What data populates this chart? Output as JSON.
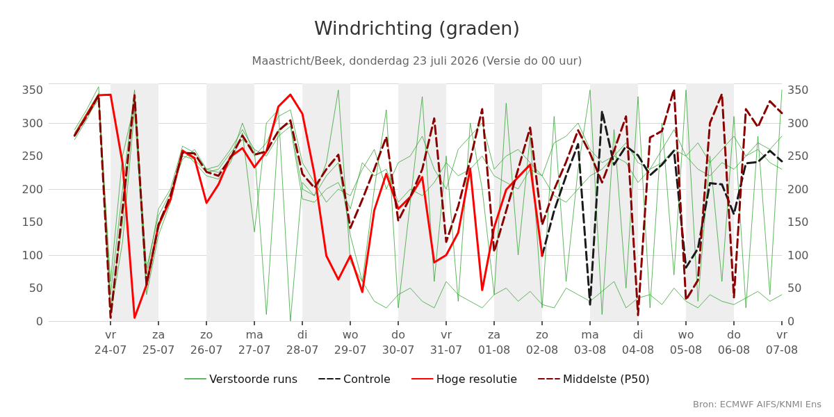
{
  "chart_data": {
    "type": "line",
    "title": "Windrichting (graden)",
    "subtitle": "Maastricht/Beek, donderdag 23 juli 2026 (Versie do 00 uur)",
    "x": [
      "2026-07-23T06:00",
      "2026-07-23T12:00",
      "2026-07-23T18:00",
      "2026-07-24T00:00",
      "2026-07-24T06:00",
      "2026-07-24T12:00",
      "2026-07-24T18:00",
      "2026-07-25T00:00",
      "2026-07-25T06:00",
      "2026-07-25T12:00",
      "2026-07-25T18:00",
      "2026-07-26T00:00",
      "2026-07-26T06:00",
      "2026-07-26T12:00",
      "2026-07-26T18:00",
      "2026-07-27T00:00",
      "2026-07-27T06:00",
      "2026-07-27T12:00",
      "2026-07-27T18:00",
      "2026-07-28T00:00",
      "2026-07-28T06:00",
      "2026-07-28T12:00",
      "2026-07-28T18:00",
      "2026-07-29T00:00",
      "2026-07-29T06:00",
      "2026-07-29T12:00",
      "2026-07-29T18:00",
      "2026-07-30T00:00",
      "2026-07-30T06:00",
      "2026-07-30T12:00",
      "2026-07-30T18:00",
      "2026-07-31T00:00",
      "2026-07-31T06:00",
      "2026-07-31T12:00",
      "2026-07-31T18:00",
      "2026-08-01T00:00",
      "2026-08-01T06:00",
      "2026-08-01T12:00",
      "2026-08-01T18:00",
      "2026-08-02T00:00",
      "2026-08-02T06:00",
      "2026-08-02T12:00",
      "2026-08-02T18:00",
      "2026-08-03T00:00",
      "2026-08-03T06:00",
      "2026-08-03T12:00",
      "2026-08-03T18:00",
      "2026-08-04T00:00",
      "2026-08-04T06:00",
      "2026-08-04T12:00",
      "2026-08-04T18:00",
      "2026-08-05T00:00",
      "2026-08-05T06:00",
      "2026-08-05T12:00",
      "2026-08-05T18:00",
      "2026-08-06T00:00",
      "2026-08-06T06:00",
      "2026-08-06T12:00",
      "2026-08-06T18:00",
      "2026-08-07T00:00"
    ],
    "series": [
      {
        "name": "Verstoorde runs",
        "color": "#2ca02c",
        "line_style": "solid",
        "values": [
          285,
          315,
          345,
          20,
          150,
          340,
          50,
          140,
          185,
          250,
          245,
          225,
          230,
          255,
          275,
          260,
          10,
          290,
          300,
          200,
          190,
          220,
          240,
          130,
          60,
          30,
          20,
          40,
          50,
          30,
          20,
          60,
          40,
          30,
          20,
          40,
          50,
          30,
          45,
          25,
          20,
          50,
          40,
          30,
          45,
          60,
          20,
          35,
          40,
          25,
          50,
          30,
          20,
          40,
          30,
          25,
          35,
          45,
          30,
          40
        ]
      },
      {
        "color": "#2ca02c",
        "line_style": "solid",
        "values": [
          275,
          305,
          340,
          60,
          250,
          330,
          80,
          160,
          195,
          245,
          260,
          230,
          225,
          245,
          300,
          250,
          270,
          310,
          320,
          240,
          210,
          180,
          200,
          190,
          230,
          260,
          200,
          240,
          250,
          280,
          230,
          200,
          260,
          280,
          300,
          230,
          250,
          260,
          240,
          220,
          270,
          280,
          300,
          260,
          240,
          250,
          270,
          240,
          230,
          260,
          290,
          250,
          270,
          240,
          260,
          280,
          250,
          270,
          260,
          280
        ]
      },
      {
        "color": "#2ca02c",
        "line_style": "solid",
        "values": [
          280,
          310,
          335,
          10,
          120,
          320,
          40,
          130,
          180,
          260,
          240,
          220,
          215,
          240,
          285,
          135,
          300,
          320,
          0,
          210,
          190,
          240,
          350,
          90,
          60,
          200,
          320,
          20,
          180,
          340,
          60,
          250,
          30,
          300,
          200,
          40,
          330,
          100,
          280,
          20,
          310,
          60,
          230,
          350,
          10,
          290,
          50,
          340,
          20,
          300,
          70,
          350,
          30,
          250,
          60,
          310,
          20,
          280,
          40,
          350
        ]
      },
      {
        "color": "#2ca02c",
        "line_style": "solid",
        "values": [
          290,
          320,
          355,
          40,
          200,
          350,
          70,
          170,
          200,
          265,
          255,
          230,
          235,
          260,
          290,
          260,
          250,
          280,
          295,
          185,
          180,
          200,
          210,
          170,
          240,
          220,
          230,
          180,
          200,
          190,
          210,
          240,
          220,
          230,
          250,
          220,
          210,
          200,
          230,
          220,
          190,
          180,
          200,
          220,
          230,
          250,
          240,
          210,
          230,
          240,
          260,
          250,
          230,
          220,
          240,
          230,
          250,
          260,
          240,
          230
        ]
      },
      {
        "name": "Controle",
        "color": "#1a1a1a",
        "line_style": "dashed",
        "values": [
          null,
          null,
          null,
          null,
          null,
          null,
          null,
          null,
          null,
          null,
          null,
          null,
          null,
          null,
          null,
          null,
          null,
          null,
          null,
          null,
          null,
          null,
          null,
          null,
          null,
          null,
          null,
          null,
          null,
          null,
          null,
          null,
          null,
          null,
          null,
          null,
          null,
          null,
          null,
          99,
          167,
          220,
          268,
          25,
          318,
          237,
          265,
          251,
          221,
          237,
          258,
          81,
          110,
          209,
          207,
          162,
          239,
          241,
          258,
          242
        ]
      },
      {
        "name": "Hoge resolutie",
        "color": "#ff0000",
        "line_style": "solid",
        "values": [
          281,
          312,
          342,
          343,
          239,
          5,
          55,
          146,
          184,
          258,
          247,
          179,
          207,
          249,
          262,
          233,
          257,
          325,
          343,
          314,
          223,
          99,
          63,
          99,
          44,
          168,
          223,
          170,
          188,
          218,
          89,
          100,
          134,
          231,
          47,
          142,
          199,
          218,
          237,
          99,
          null,
          null,
          null,
          null,
          null,
          null,
          null,
          null,
          null,
          null,
          null,
          null,
          null,
          null,
          null,
          null,
          null,
          null,
          null,
          null
        ]
      },
      {
        "name": "Middelste (P50)",
        "color": "#8b0000",
        "line_style": "dashed",
        "values": [
          281,
          310,
          342,
          5,
          170,
          342,
          55,
          146,
          190,
          255,
          254,
          226,
          220,
          247,
          281,
          252,
          257,
          288,
          304,
          223,
          202,
          230,
          252,
          141,
          184,
          230,
          279,
          152,
          188,
          230,
          307,
          120,
          174,
          244,
          321,
          105,
          167,
          230,
          293,
          146,
          199,
          241,
          289,
          254,
          210,
          258,
          310,
          9,
          278,
          288,
          351,
          32,
          62,
          300,
          344,
          36,
          321,
          294,
          333,
          315
        ]
      }
    ],
    "xlim": [
      "2026-07-22T17:00",
      "2026-08-07T00:00"
    ],
    "xticks": [
      {
        "value": "2026-07-24",
        "label": "vr\n24-07"
      },
      {
        "value": "2026-07-25",
        "label": "za\n25-07"
      },
      {
        "value": "2026-07-26",
        "label": "zo\n26-07"
      },
      {
        "value": "2026-07-27",
        "label": "ma\n27-07"
      },
      {
        "value": "2026-07-28",
        "label": "di\n28-07"
      },
      {
        "value": "2026-07-29",
        "label": "wo\n29-07"
      },
      {
        "value": "2026-07-30",
        "label": "do\n30-07"
      },
      {
        "value": "2026-07-31",
        "label": "vr\n31-07"
      },
      {
        "value": "2026-08-01",
        "label": "za\n01-08"
      },
      {
        "value": "2026-08-02",
        "label": "zo\n02-08"
      },
      {
        "value": "2026-08-03",
        "label": "ma\n03-08"
      },
      {
        "value": "2026-08-04",
        "label": "di\n04-08"
      },
      {
        "value": "2026-08-05",
        "label": "wo\n05-08"
      },
      {
        "value": "2026-08-06",
        "label": "do\n06-08"
      },
      {
        "value": "2026-08-07",
        "label": "vr\n07-08"
      }
    ],
    "ylim": [
      0,
      360
    ],
    "yticks": [
      0,
      50,
      100,
      150,
      200,
      250,
      300,
      350
    ],
    "y2lim": [
      0,
      360
    ],
    "y2ticks": [
      0,
      50,
      100,
      150,
      200,
      250,
      300,
      350
    ],
    "bands": [
      {
        "axis": "x",
        "from": "2026-07-24",
        "to": "2026-07-25",
        "color": "#eeeeee"
      },
      {
        "axis": "x",
        "from": "2026-07-26",
        "to": "2026-07-27",
        "color": "#eeeeee"
      },
      {
        "axis": "x",
        "from": "2026-07-28",
        "to": "2026-07-29",
        "color": "#eeeeee"
      },
      {
        "axis": "x",
        "from": "2026-07-30",
        "to": "2026-07-31",
        "color": "#eeeeee"
      },
      {
        "axis": "x",
        "from": "2026-08-01",
        "to": "2026-08-02",
        "color": "#eeeeee"
      },
      {
        "axis": "x",
        "from": "2026-08-03",
        "to": "2026-08-04",
        "color": "#eeeeee"
      },
      {
        "axis": "x",
        "from": "2026-08-05",
        "to": "2026-08-06",
        "color": "#eeeeee"
      }
    ],
    "grid": "y",
    "legend": "bottom",
    "marker": "none",
    "annotations": [
      "Bron: ECMWF AIFS/KNMI Ens"
    ]
  }
}
